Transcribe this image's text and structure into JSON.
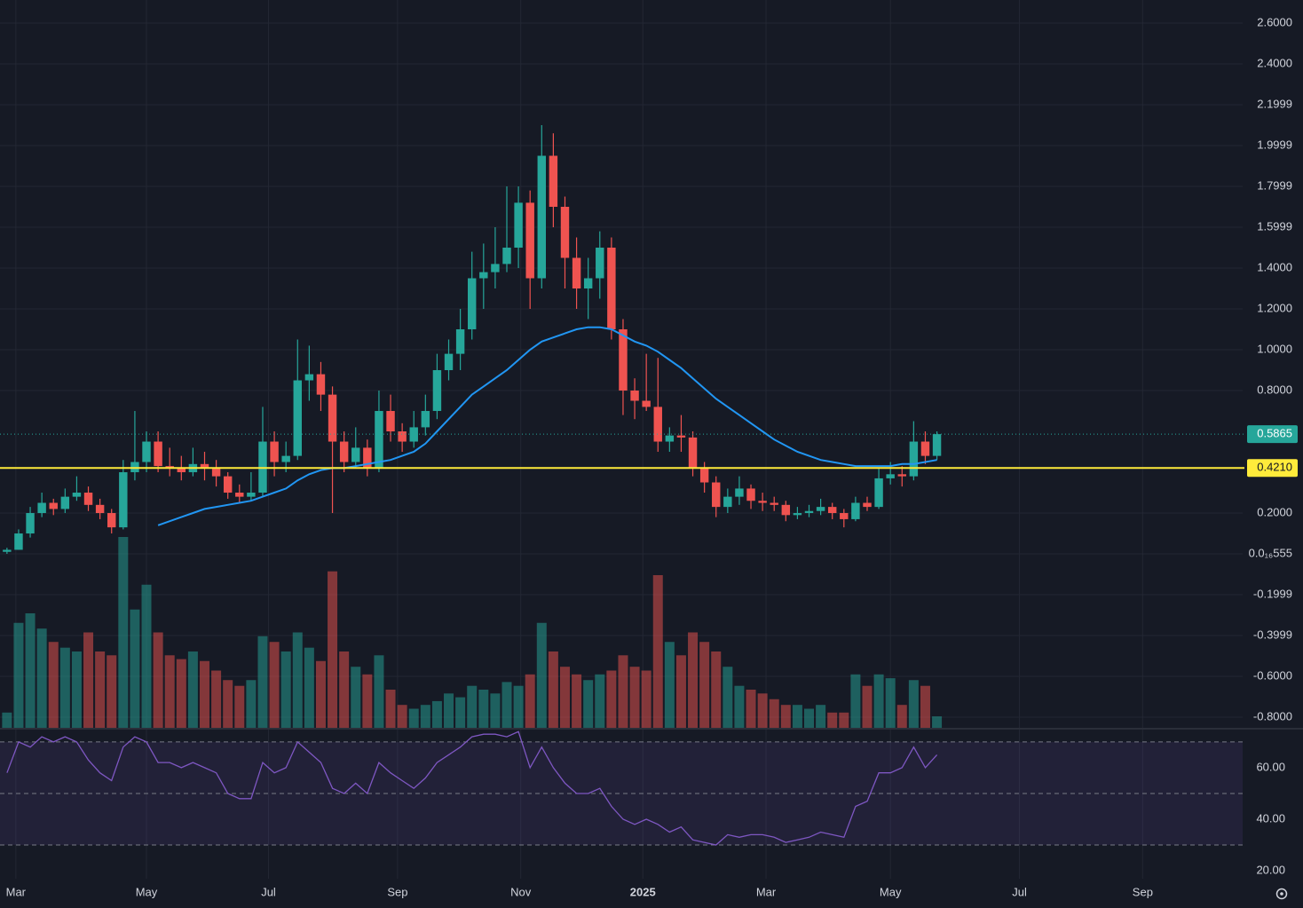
{
  "chart_data": {
    "type": "candlestick",
    "candles": [
      [
        0.01,
        0.03,
        0.0,
        0.02
      ],
      [
        0.02,
        0.12,
        0.02,
        0.1
      ],
      [
        0.1,
        0.23,
        0.08,
        0.2
      ],
      [
        0.2,
        0.3,
        0.18,
        0.25
      ],
      [
        0.25,
        0.27,
        0.19,
        0.22
      ],
      [
        0.22,
        0.32,
        0.2,
        0.28
      ],
      [
        0.28,
        0.38,
        0.26,
        0.3
      ],
      [
        0.3,
        0.33,
        0.21,
        0.24
      ],
      [
        0.24,
        0.27,
        0.17,
        0.2
      ],
      [
        0.2,
        0.22,
        0.1,
        0.13
      ],
      [
        0.13,
        0.46,
        0.12,
        0.4
      ],
      [
        0.4,
        0.7,
        0.36,
        0.45
      ],
      [
        0.45,
        0.6,
        0.4,
        0.55
      ],
      [
        0.55,
        0.6,
        0.4,
        0.43
      ],
      [
        0.43,
        0.52,
        0.38,
        0.42
      ],
      [
        0.42,
        0.48,
        0.36,
        0.4
      ],
      [
        0.4,
        0.52,
        0.38,
        0.44
      ],
      [
        0.44,
        0.5,
        0.36,
        0.42
      ],
      [
        0.42,
        0.46,
        0.33,
        0.38
      ],
      [
        0.38,
        0.4,
        0.27,
        0.3
      ],
      [
        0.3,
        0.34,
        0.25,
        0.28
      ],
      [
        0.28,
        0.4,
        0.26,
        0.3
      ],
      [
        0.3,
        0.72,
        0.28,
        0.55
      ],
      [
        0.55,
        0.6,
        0.38,
        0.45
      ],
      [
        0.45,
        0.55,
        0.4,
        0.48
      ],
      [
        0.48,
        1.05,
        0.46,
        0.85
      ],
      [
        0.85,
        1.02,
        0.75,
        0.88
      ],
      [
        0.88,
        0.94,
        0.7,
        0.78
      ],
      [
        0.78,
        0.82,
        0.2,
        0.55
      ],
      [
        0.55,
        0.6,
        0.4,
        0.45
      ],
      [
        0.45,
        0.62,
        0.42,
        0.52
      ],
      [
        0.52,
        0.56,
        0.38,
        0.42
      ],
      [
        0.42,
        0.8,
        0.4,
        0.7
      ],
      [
        0.7,
        0.78,
        0.55,
        0.6
      ],
      [
        0.6,
        0.64,
        0.5,
        0.55
      ],
      [
        0.55,
        0.7,
        0.52,
        0.62
      ],
      [
        0.62,
        0.78,
        0.58,
        0.7
      ],
      [
        0.7,
        0.98,
        0.66,
        0.9
      ],
      [
        0.9,
        1.05,
        0.85,
        0.98
      ],
      [
        0.98,
        1.2,
        0.9,
        1.1
      ],
      [
        1.1,
        1.48,
        1.05,
        1.35
      ],
      [
        1.35,
        1.52,
        1.2,
        1.38
      ],
      [
        1.38,
        1.6,
        1.3,
        1.42
      ],
      [
        1.42,
        1.8,
        1.38,
        1.5
      ],
      [
        1.5,
        1.8,
        1.4,
        1.72
      ],
      [
        1.72,
        1.78,
        1.2,
        1.35
      ],
      [
        1.35,
        2.1,
        1.3,
        1.95
      ],
      [
        1.95,
        2.06,
        1.6,
        1.7
      ],
      [
        1.7,
        1.75,
        1.3,
        1.45
      ],
      [
        1.45,
        1.55,
        1.2,
        1.3
      ],
      [
        1.3,
        1.45,
        1.15,
        1.35
      ],
      [
        1.35,
        1.58,
        1.25,
        1.5
      ],
      [
        1.5,
        1.55,
        1.05,
        1.1
      ],
      [
        1.1,
        1.15,
        0.68,
        0.8
      ],
      [
        0.8,
        0.86,
        0.66,
        0.75
      ],
      [
        0.75,
        0.98,
        0.7,
        0.72
      ],
      [
        0.72,
        0.96,
        0.5,
        0.55
      ],
      [
        0.55,
        0.62,
        0.5,
        0.58
      ],
      [
        0.58,
        0.68,
        0.5,
        0.57
      ],
      [
        0.57,
        0.6,
        0.38,
        0.42
      ],
      [
        0.42,
        0.45,
        0.3,
        0.35
      ],
      [
        0.35,
        0.38,
        0.18,
        0.23
      ],
      [
        0.23,
        0.32,
        0.2,
        0.28
      ],
      [
        0.28,
        0.38,
        0.24,
        0.32
      ],
      [
        0.32,
        0.34,
        0.22,
        0.26
      ],
      [
        0.26,
        0.3,
        0.21,
        0.25
      ],
      [
        0.25,
        0.28,
        0.21,
        0.24
      ],
      [
        0.24,
        0.26,
        0.16,
        0.19
      ],
      [
        0.19,
        0.23,
        0.17,
        0.2
      ],
      [
        0.2,
        0.24,
        0.18,
        0.21
      ],
      [
        0.21,
        0.27,
        0.19,
        0.23
      ],
      [
        0.23,
        0.25,
        0.17,
        0.2
      ],
      [
        0.2,
        0.22,
        0.13,
        0.17
      ],
      [
        0.17,
        0.28,
        0.16,
        0.25
      ],
      [
        0.25,
        0.28,
        0.21,
        0.23
      ],
      [
        0.23,
        0.42,
        0.22,
        0.37
      ],
      [
        0.37,
        0.45,
        0.34,
        0.39
      ],
      [
        0.39,
        0.43,
        0.33,
        0.38
      ],
      [
        0.38,
        0.65,
        0.36,
        0.55
      ],
      [
        0.55,
        0.6,
        0.44,
        0.48
      ],
      [
        0.48,
        0.6,
        0.46,
        0.5865
      ]
    ],
    "volume": [
      8,
      55,
      60,
      52,
      45,
      42,
      40,
      50,
      40,
      38,
      100,
      62,
      75,
      50,
      38,
      36,
      40,
      35,
      30,
      25,
      22,
      25,
      48,
      45,
      40,
      50,
      42,
      35,
      82,
      40,
      32,
      28,
      38,
      20,
      12,
      10,
      12,
      14,
      18,
      16,
      22,
      20,
      18,
      24,
      22,
      28,
      55,
      40,
      32,
      28,
      25,
      28,
      30,
      38,
      32,
      30,
      80,
      45,
      38,
      50,
      45,
      40,
      32,
      22,
      20,
      18,
      15,
      12,
      12,
      10,
      12,
      8,
      8,
      28,
      22,
      28,
      26,
      12,
      25,
      22,
      6
    ],
    "vlim": [
      0,
      100
    ],
    "ma": [
      null,
      null,
      null,
      null,
      null,
      null,
      null,
      null,
      null,
      null,
      null,
      null,
      null,
      0.14,
      0.16,
      0.18,
      0.2,
      0.22,
      0.23,
      0.24,
      0.25,
      0.26,
      0.28,
      0.3,
      0.32,
      0.36,
      0.39,
      0.41,
      0.42,
      0.42,
      0.43,
      0.44,
      0.45,
      0.46,
      0.48,
      0.5,
      0.54,
      0.6,
      0.66,
      0.72,
      0.78,
      0.82,
      0.86,
      0.9,
      0.95,
      1.0,
      1.04,
      1.06,
      1.08,
      1.1,
      1.11,
      1.11,
      1.1,
      1.07,
      1.04,
      1.02,
      0.99,
      0.95,
      0.91,
      0.86,
      0.81,
      0.76,
      0.72,
      0.68,
      0.64,
      0.6,
      0.56,
      0.53,
      0.5,
      0.48,
      0.46,
      0.45,
      0.44,
      0.43,
      0.43,
      0.43,
      0.43,
      0.44,
      0.44,
      0.45,
      0.46
    ],
    "colors": {
      "up": "#26a69a",
      "down": "#ef5350",
      "ma": "#2196f3",
      "hline": "#ffeb3b",
      "rsi": "#7e57c2"
    },
    "ylim": [
      -0.852,
      2.713
    ],
    "yticks": [
      {
        "value": 2.6,
        "label": "2.6000"
      },
      {
        "value": 2.4,
        "label": "2.4000"
      },
      {
        "value": 2.1999,
        "label": "2.1999"
      },
      {
        "value": 1.9999,
        "label": "1.9999"
      },
      {
        "value": 1.7999,
        "label": "1.7999"
      },
      {
        "value": 1.5999,
        "label": "1.5999"
      },
      {
        "value": 1.4,
        "label": "1.4000"
      },
      {
        "value": 1.2,
        "label": "1.2000"
      },
      {
        "value": 1.0,
        "label": "1.0000"
      },
      {
        "value": 0.8,
        "label": "0.8000"
      },
      {
        "value": 0.2,
        "label": "0.2000"
      },
      {
        "value": 0,
        "label": "0.0₁₆555"
      },
      {
        "value": -0.1999,
        "label": "-0.1999"
      },
      {
        "value": -0.3999,
        "label": "-0.3999"
      },
      {
        "value": -0.6,
        "label": "-0.6000"
      },
      {
        "value": -0.8,
        "label": "-0.8000"
      }
    ],
    "xlim": [
      -0.6,
      106.3
    ],
    "xticks": [
      {
        "value": 0.76,
        "label": "Mar"
      },
      {
        "value": 12.0,
        "label": "May"
      },
      {
        "value": 22.5,
        "label": "Jul"
      },
      {
        "value": 33.6,
        "label": "Sep"
      },
      {
        "value": 44.2,
        "label": "Nov"
      },
      {
        "value": 54.7,
        "label": "2025"
      },
      {
        "value": 65.3,
        "label": "Mar"
      },
      {
        "value": 76.0,
        "label": "May"
      },
      {
        "value": 87.1,
        "label": "Jul"
      },
      {
        "value": 97.7,
        "label": "Sep"
      }
    ],
    "grid": true,
    "hline": {
      "value": 0.421,
      "label": "0.4210"
    },
    "last_price": {
      "value": 0.5865,
      "label": "0.5865"
    },
    "rsi": {
      "values": [
        58,
        70,
        68,
        72,
        70,
        72,
        70,
        63,
        58,
        55,
        68,
        72,
        70,
        62,
        62,
        60,
        62,
        60,
        58,
        50,
        48,
        48,
        62,
        58,
        60,
        70,
        66,
        62,
        52,
        50,
        54,
        50,
        62,
        58,
        55,
        52,
        56,
        62,
        65,
        68,
        72,
        73,
        73,
        72,
        74,
        60,
        68,
        60,
        54,
        50,
        50,
        52,
        45,
        40,
        38,
        40,
        38,
        35,
        37,
        32,
        31,
        30,
        34,
        33,
        34,
        34,
        33,
        31,
        32,
        33,
        35,
        34,
        33,
        45,
        47,
        58,
        58,
        60,
        68,
        60,
        65
      ],
      "ylim": [
        16.9,
        74.8
      ],
      "yticks": [
        {
          "value": 60,
          "label": "60.00"
        },
        {
          "value": 40,
          "label": "40.00"
        },
        {
          "value": 20,
          "label": "20.00"
        }
      ],
      "levels": [
        70,
        50,
        30
      ]
    }
  }
}
